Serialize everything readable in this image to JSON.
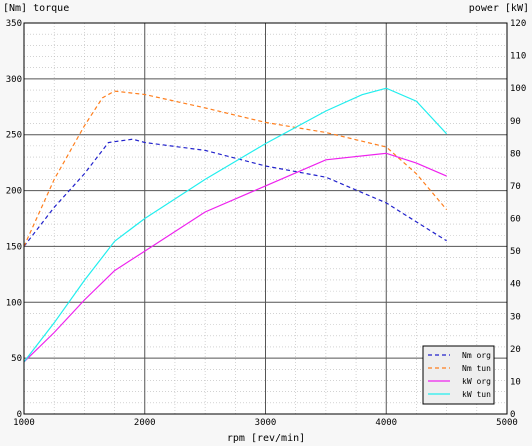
{
  "chart_data": {
    "type": "line",
    "left_axis_label": "[Nm] torque",
    "right_axis_label": "power [kW]",
    "xlabel": "rpm [rev/min]",
    "xlim": [
      1000,
      5000
    ],
    "ylim_left": [
      0,
      350
    ],
    "ylim_right": [
      0,
      120
    ],
    "x_ticks": [
      1000,
      2000,
      3000,
      4000,
      5000
    ],
    "y_ticks_left": [
      0,
      50,
      100,
      150,
      200,
      250,
      300,
      350
    ],
    "y_ticks_right": [
      0,
      10,
      20,
      30,
      40,
      50,
      60,
      70,
      80,
      90,
      100,
      110,
      120
    ],
    "grid": true,
    "legend_position": "bottom-right",
    "series": [
      {
        "name": "Nm org",
        "axis": "left",
        "style": "dashed",
        "color": "#2222cc",
        "x": [
          1000,
          1250,
          1500,
          1700,
          1900,
          2000,
          2500,
          3000,
          3500,
          4000,
          4250,
          4500
        ],
        "y": [
          150,
          185,
          215,
          243,
          246,
          243,
          236,
          222,
          212,
          189,
          172,
          155
        ]
      },
      {
        "name": "Nm tun",
        "axis": "left",
        "style": "dashed",
        "color": "#ff7f1e",
        "x": [
          1000,
          1250,
          1500,
          1650,
          1750,
          2000,
          2500,
          3000,
          3500,
          4000,
          4250,
          4500
        ],
        "y": [
          150,
          210,
          258,
          283,
          289,
          286,
          274,
          261,
          252,
          239,
          215,
          183
        ]
      },
      {
        "name": "kW org",
        "axis": "right",
        "style": "solid",
        "color": "#ee22ee",
        "x": [
          1000,
          1250,
          1500,
          1750,
          2000,
          2500,
          3000,
          3500,
          4000,
          4250,
          4500
        ],
        "y": [
          16,
          25,
          35,
          44,
          50,
          62,
          70,
          78,
          80,
          77,
          73
        ]
      },
      {
        "name": "kW tun",
        "axis": "right",
        "style": "solid",
        "color": "#22eeee",
        "x": [
          1000,
          1250,
          1500,
          1750,
          2000,
          2500,
          3000,
          3500,
          3800,
          4000,
          4250,
          4500
        ],
        "y": [
          16,
          28,
          41,
          53,
          60,
          72,
          83,
          93,
          98,
          100,
          96,
          86
        ]
      }
    ]
  }
}
